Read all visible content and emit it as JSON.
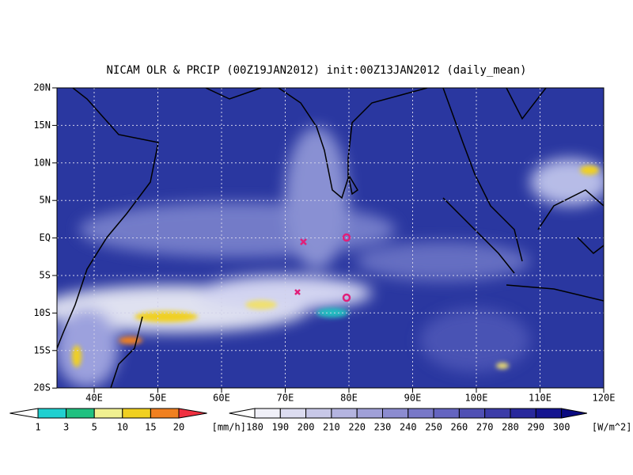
{
  "title": "NICAM OLR & PRCIP (00Z19JAN2012) init:00Z13JAN2012 (daily_mean)",
  "lat_labels": [
    "20N",
    "15N",
    "10N",
    "5N",
    "EQ",
    "5S",
    "10S",
    "15S",
    "20S"
  ],
  "lon_labels": [
    "40E",
    "50E",
    "60E",
    "70E",
    "80E",
    "90E",
    "100E",
    "110E",
    "120E"
  ],
  "precip_scale": {
    "labels": [
      "1",
      "3",
      "5",
      "10",
      "15",
      "20"
    ],
    "unit": "[mm/h]"
  },
  "olr_scale": {
    "labels": [
      "180",
      "190",
      "200",
      "210",
      "220",
      "230",
      "240",
      "250",
      "260",
      "270",
      "280",
      "290",
      "300"
    ],
    "unit": "[W/m^2]"
  }
}
